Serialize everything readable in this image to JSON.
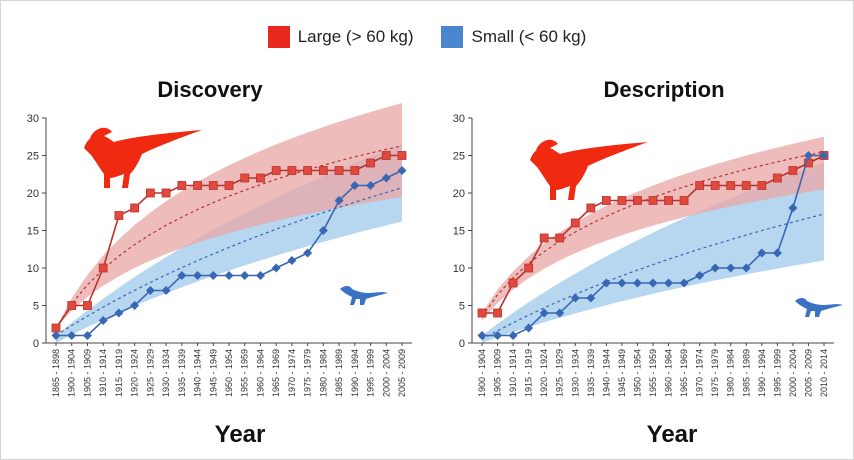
{
  "legend": [
    {
      "label": "Large (> 60 kg)",
      "color": "#e8281e"
    },
    {
      "label": "Small (< 60 kg)",
      "color": "#4a86d0"
    }
  ],
  "colors": {
    "large_line": "#b8322e",
    "large_marker": "#e04a3c",
    "large_band": "#e9a6a6",
    "small_line": "#3a67b4",
    "small_band": "#a9d0ec",
    "large_icon": "#f02a10",
    "small_icon": "#3b73c4"
  },
  "icons": {
    "large": "hadrosaur-silhouette-icon",
    "small": "small-theropod-silhouette-icon"
  },
  "chart_data": [
    {
      "type": "line",
      "title": "Discovery",
      "xlabel": "Year",
      "ylabel": "",
      "ylim": [
        0,
        30
      ],
      "yticks": [
        0,
        5,
        10,
        15,
        20,
        25,
        30
      ],
      "categories": [
        "1865 - 1898",
        "1900 - 1904",
        "1905 - 1909",
        "1910 - 1914",
        "1915 - 1919",
        "1920 - 1924",
        "1925 - 1929",
        "1930 - 1934",
        "1935 - 1939",
        "1940 - 1944",
        "1945 - 1949",
        "1950 - 1954",
        "1955 - 1959",
        "1960 - 1964",
        "1965 - 1969",
        "1970 - 1974",
        "1975 - 1979",
        "1980 - 1984",
        "1985 - 1989",
        "1990 - 1994",
        "1995 - 1999",
        "2000 - 2004",
        "2005 - 2009"
      ],
      "series": [
        {
          "name": "Large (> 60 kg)",
          "values": [
            2,
            5,
            5,
            10,
            17,
            18,
            20,
            20,
            21,
            21,
            21,
            21,
            22,
            22,
            23,
            23,
            23,
            23,
            23,
            23,
            24,
            25,
            25
          ]
        },
        {
          "name": "Small (< 60 kg)",
          "values": [
            1,
            1,
            1,
            3,
            4,
            5,
            7,
            7,
            9,
            9,
            9,
            9,
            9,
            9,
            10,
            11,
            12,
            15,
            19,
            21,
            21,
            22,
            23
          ]
        }
      ],
      "bands": {
        "large": {
          "upper": [
            2,
            32.0
          ],
          "lower": [
            2,
            19.5
          ],
          "fit_start": 2,
          "fit_end": 26.3
        },
        "small": {
          "upper": [
            1,
            26.5
          ],
          "lower": [
            0,
            16.2
          ],
          "fit_start": 1,
          "fit_end": 20.7
        }
      }
    },
    {
      "type": "line",
      "title": "Description",
      "xlabel": "Year",
      "ylabel": "",
      "ylim": [
        0,
        30
      ],
      "yticks": [
        0,
        5,
        10,
        15,
        20,
        25,
        30
      ],
      "categories": [
        "1900 - 1904",
        "1905 - 1909",
        "1910 - 1914",
        "1915 - 1919",
        "1920 - 1924",
        "1925 - 1929",
        "1930 - 1934",
        "1935 - 1939",
        "1940 - 1944",
        "1945 - 1949",
        "1950 - 1954",
        "1955 - 1959",
        "1960 - 1964",
        "1965 - 1969",
        "1970 - 1974",
        "1975 - 1979",
        "1980 - 1984",
        "1985 - 1989",
        "1990 - 1994",
        "1995 - 1999",
        "2000 - 2004",
        "2005 - 2009",
        "2010 - 2014"
      ],
      "series": [
        {
          "name": "Large (> 60 kg)",
          "values": [
            4,
            4,
            8,
            10,
            14,
            14,
            16,
            18,
            19,
            19,
            19,
            19,
            19,
            19,
            21,
            21,
            21,
            21,
            21,
            22,
            23,
            24,
            25
          ]
        },
        {
          "name": "Small (< 60 kg)",
          "values": [
            1,
            1,
            1,
            2,
            4,
            4,
            6,
            6,
            8,
            8,
            8,
            8,
            8,
            8,
            9,
            10,
            10,
            10,
            12,
            12,
            18,
            25,
            25
          ]
        }
      ],
      "bands": {
        "large": {
          "upper": [
            4,
            27.5
          ],
          "lower": [
            3,
            20.5
          ],
          "fit_start": 3.5,
          "fit_end": 25.5
        },
        "small": {
          "upper": [
            1,
            24.0
          ],
          "lower": [
            0,
            11.0
          ],
          "fit_start": 0.5,
          "fit_end": 17.2
        }
      }
    }
  ]
}
